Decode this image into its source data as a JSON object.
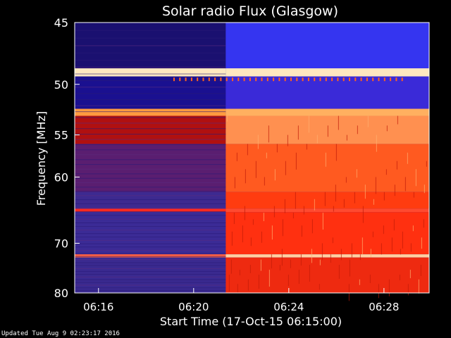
{
  "updated_text": "Updated Tue Aug  9 02:23:17 2016",
  "chart_data": {
    "type": "heatmap",
    "title": "Solar radio Flux (Glasgow)",
    "xlabel": "Start Time (17-Oct-15 06:15:00)",
    "ylabel": "Frequency [MHz]",
    "x_ticks": [
      "06:16",
      "06:20",
      "06:24",
      "06:28"
    ],
    "x_tick_minutes": [
      1,
      5,
      9,
      13
    ],
    "xlim_minutes": [
      0,
      14.9
    ],
    "y_ticks": [
      45,
      50,
      55,
      60,
      70,
      80
    ],
    "ylim": [
      45,
      80
    ],
    "y_scale": "reciprocal",
    "grid": false,
    "event_onset_minutes": 6.35,
    "before_onset_color": "#3a2a9a",
    "after_onset_color": "#ff3a10",
    "high_band_before_color": "#1a10c8",
    "high_band_after_color": "#3030ff",
    "bright_band_color": "#ffe0b0",
    "frequency_bands": [
      {
        "f_min": 45.0,
        "f_max": 48.6,
        "before": "#1a1070",
        "after": "#3535f0"
      },
      {
        "f_min": 48.6,
        "f_max": 49.3,
        "before": "#ffe8c0",
        "after": "#ffe8c0"
      },
      {
        "f_min": 49.3,
        "f_max": 52.3,
        "before": "#1a1090",
        "after": "#3a2ad8"
      },
      {
        "f_min": 52.3,
        "f_max": 53.0,
        "before": "#ff9a40",
        "after": "#ffb060"
      },
      {
        "f_min": 53.0,
        "f_max": 56.0,
        "before": "#b01010",
        "after": "#ff9050"
      },
      {
        "f_min": 56.0,
        "f_max": 62.0,
        "before": "#5a1e70",
        "after": "#ff5a20"
      },
      {
        "f_min": 62.0,
        "f_max": 64.4,
        "before": "#3d2a90",
        "after": "#ff3c10"
      },
      {
        "f_min": 64.4,
        "f_max": 64.9,
        "before": "#ff2a20",
        "after": "#ff4a30"
      },
      {
        "f_min": 64.9,
        "f_max": 72.0,
        "before": "#3b2b96",
        "after": "#ff3010"
      },
      {
        "f_min": 72.0,
        "f_max": 72.6,
        "before": "#ff6040",
        "after": "#ffd0a0"
      },
      {
        "f_min": 72.6,
        "f_max": 80.0,
        "before": "#3a2a90",
        "after": "#ee2a10"
      }
    ]
  }
}
